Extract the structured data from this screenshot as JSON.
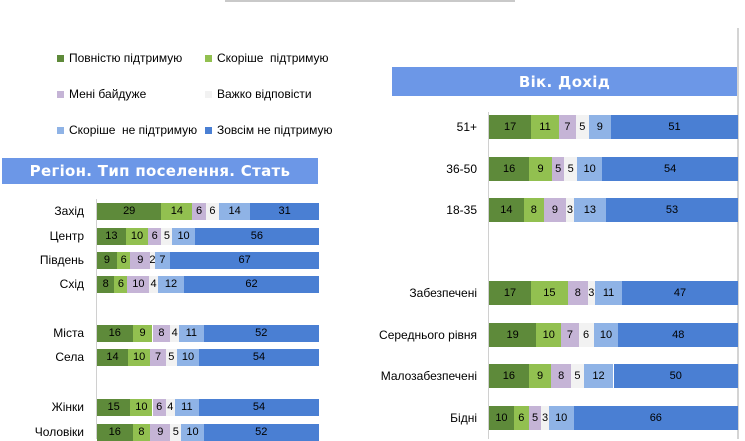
{
  "colors": {
    "series": [
      "#5e8a3a",
      "#92c050",
      "#c5b4d6",
      "#f2f2f2",
      "#8fb3e6",
      "#4a7fd3"
    ],
    "banner": "#6c97e7"
  },
  "legend": [
    {
      "label": "Повністю підтримую"
    },
    {
      "label": "Скоріше  підтримую"
    },
    {
      "label": "Мені байдуже"
    },
    {
      "label": "Важко відповісти"
    },
    {
      "label": "Скоріше  не підтримую"
    },
    {
      "label": "Зовсім не підтримую"
    }
  ],
  "left_panel": {
    "title": "Регіон. Тип поселення. Стать"
  },
  "right_panel": {
    "title": "Вік. Дохід"
  },
  "chart_data": [
    {
      "type": "bar",
      "orientation": "horizontal",
      "stacked": true,
      "panel": "left",
      "title": "Регіон. Тип поселення. Стать",
      "series_names": [
        "Повністю підтримую",
        "Скоріше  підтримую",
        "Мені байдуже",
        "Важко відповісти",
        "Скоріше  не підтримую",
        "Зовсім не підтримую"
      ],
      "rows": [
        {
          "label": "Захід",
          "values": [
            29,
            14,
            6,
            6,
            14,
            31
          ]
        },
        {
          "label": "Центр",
          "values": [
            13,
            10,
            6,
            5,
            10,
            56
          ]
        },
        {
          "label": "Південь",
          "values": [
            9,
            6,
            9,
            2,
            7,
            67
          ]
        },
        {
          "label": "Схід",
          "values": [
            8,
            6,
            10,
            4,
            12,
            62
          ]
        },
        {
          "label": "",
          "values": []
        },
        {
          "label": "Міста",
          "values": [
            16,
            9,
            8,
            4,
            11,
            52
          ]
        },
        {
          "label": "Села",
          "values": [
            14,
            10,
            7,
            5,
            10,
            54
          ]
        },
        {
          "label": "",
          "values": []
        },
        {
          "label": "Жінки",
          "values": [
            15,
            10,
            6,
            4,
            11,
            54
          ]
        },
        {
          "label": "Чоловіки",
          "values": [
            16,
            8,
            9,
            5,
            10,
            52
          ]
        }
      ],
      "xlim": [
        0,
        100
      ]
    },
    {
      "type": "bar",
      "orientation": "horizontal",
      "stacked": true,
      "panel": "right",
      "title": "Вік. Дохід",
      "series_names": [
        "Повністю підтримую",
        "Скоріше  підтримую",
        "Мені байдуже",
        "Важко відповісти",
        "Скоріше  не підтримую",
        "Зовсім не підтримую"
      ],
      "rows": [
        {
          "label": "51+",
          "values": [
            17,
            11,
            7,
            5,
            9,
            51
          ]
        },
        {
          "label": "36-50",
          "values": [
            16,
            9,
            5,
            5,
            10,
            54
          ]
        },
        {
          "label": "18-35",
          "values": [
            14,
            8,
            9,
            3,
            13,
            53
          ]
        },
        {
          "label": "",
          "values": []
        },
        {
          "label": "Забезпечені",
          "values": [
            17,
            15,
            8,
            3,
            11,
            47
          ]
        },
        {
          "label": "Середнього рівня",
          "values": [
            19,
            10,
            7,
            6,
            10,
            48
          ]
        },
        {
          "label": "Малозабезпечені",
          "values": [
            16,
            9,
            8,
            5,
            12,
            50
          ]
        },
        {
          "label": "Бідні",
          "values": [
            10,
            6,
            5,
            3,
            10,
            66
          ]
        }
      ],
      "xlim": [
        0,
        100
      ]
    }
  ]
}
